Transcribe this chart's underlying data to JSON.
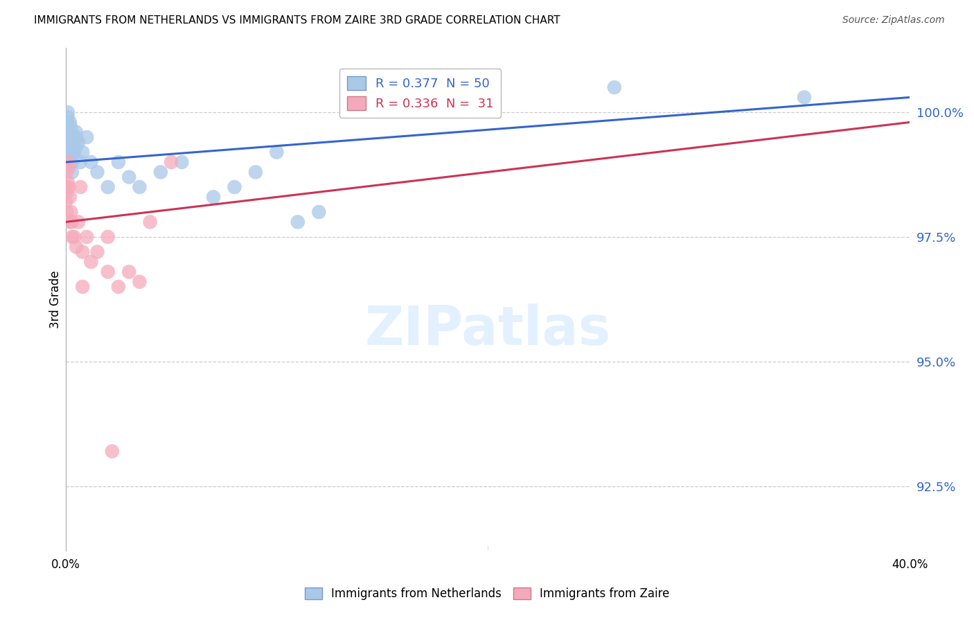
{
  "title": "IMMIGRANTS FROM NETHERLANDS VS IMMIGRANTS FROM ZAIRE 3RD GRADE CORRELATION CHART",
  "source": "Source: ZipAtlas.com",
  "ylabel": "3rd Grade",
  "y_ticks": [
    92.5,
    95.0,
    97.5,
    100.0
  ],
  "y_tick_labels": [
    "92.5%",
    "95.0%",
    "97.5%",
    "100.0%"
  ],
  "xlim": [
    0.0,
    40.0
  ],
  "ylim": [
    91.2,
    101.3
  ],
  "blue_R": 0.377,
  "blue_N": 50,
  "pink_R": 0.336,
  "pink_N": 31,
  "blue_color": "#aac8e8",
  "pink_color": "#f5aabb",
  "blue_line_color": "#3366cc",
  "pink_line_color": "#cc3355",
  "legend_label_blue": "Immigrants from Netherlands",
  "legend_label_pink": "Immigrants from Zaire",
  "blue_x": [
    0.0,
    0.0,
    0.0,
    0.0,
    0.05,
    0.05,
    0.05,
    0.1,
    0.1,
    0.1,
    0.15,
    0.15,
    0.2,
    0.2,
    0.2,
    0.25,
    0.3,
    0.3,
    0.4,
    0.4,
    0.5,
    0.5,
    0.6,
    0.7,
    0.8,
    1.0,
    1.2,
    1.5,
    2.0,
    2.5,
    3.0,
    3.5,
    4.5,
    5.5,
    7.0,
    8.0,
    9.0,
    10.0,
    11.0,
    12.0,
    0.05,
    0.1,
    0.15,
    0.2,
    0.25,
    0.3,
    0.35,
    0.5,
    35.0,
    26.0
  ],
  "blue_y": [
    99.8,
    99.5,
    99.3,
    99.0,
    99.7,
    99.4,
    99.1,
    99.6,
    99.9,
    100.0,
    99.5,
    99.2,
    99.8,
    99.4,
    99.1,
    99.3,
    99.0,
    98.8,
    99.5,
    99.2,
    99.6,
    99.3,
    99.4,
    99.0,
    99.2,
    99.5,
    99.0,
    98.8,
    98.5,
    99.0,
    98.7,
    98.5,
    98.8,
    99.0,
    98.3,
    98.5,
    98.8,
    99.2,
    97.8,
    98.0,
    99.8,
    99.6,
    99.5,
    99.3,
    99.7,
    99.4,
    99.2,
    99.5,
    100.3,
    100.5
  ],
  "pink_x": [
    0.0,
    0.0,
    0.05,
    0.05,
    0.05,
    0.1,
    0.1,
    0.15,
    0.15,
    0.2,
    0.2,
    0.25,
    0.3,
    0.3,
    0.4,
    0.5,
    0.6,
    0.7,
    0.8,
    1.0,
    1.2,
    1.5,
    2.0,
    2.0,
    2.5,
    3.0,
    3.5,
    4.0,
    5.0,
    2.2,
    0.8
  ],
  "pink_y": [
    98.5,
    98.2,
    98.8,
    98.4,
    98.0,
    99.0,
    98.6,
    98.9,
    98.5,
    97.8,
    98.3,
    98.0,
    97.5,
    97.8,
    97.5,
    97.3,
    97.8,
    98.5,
    97.2,
    97.5,
    97.0,
    97.2,
    96.8,
    97.5,
    96.5,
    96.8,
    96.6,
    97.8,
    99.0,
    93.2,
    96.5
  ],
  "blue_trendline_x": [
    0.0,
    40.0
  ],
  "blue_trendline_y": [
    99.0,
    100.3
  ],
  "pink_trendline_x": [
    0.0,
    40.0
  ],
  "pink_trendline_y": [
    97.8,
    99.8
  ]
}
